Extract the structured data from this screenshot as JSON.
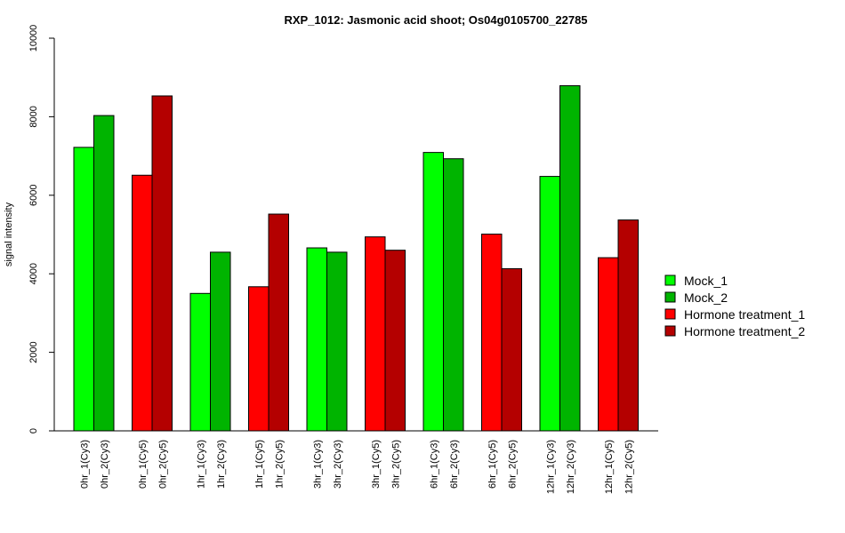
{
  "chart_data": {
    "type": "bar",
    "title": "RXP_1012: Jasmonic acid shoot; Os04g0105700_22785",
    "xlabel": "",
    "ylabel": "signal intensity",
    "ylim": [
      0,
      10000
    ],
    "yticks": [
      0,
      2000,
      4000,
      6000,
      8000,
      10000
    ],
    "grid": false,
    "legend_position": "right",
    "series": [
      {
        "name": "Mock_1",
        "color": "#00FF00"
      },
      {
        "name": "Mock_2",
        "color": "#00B400"
      },
      {
        "name": "Hormone treatment_1",
        "color": "#FF0000"
      },
      {
        "name": "Hormone treatment_2",
        "color": "#B40000"
      }
    ],
    "groups": [
      {
        "bars": [
          {
            "label": "0hr_1(Cy3)",
            "value": 7220,
            "series": 0
          },
          {
            "label": "0hr_2(Cy3)",
            "value": 8030,
            "series": 1
          }
        ]
      },
      {
        "bars": [
          {
            "label": "0hr_1(Cy5)",
            "value": 6510,
            "series": 2
          },
          {
            "label": "0hr_2(Cy5)",
            "value": 8530,
            "series": 3
          }
        ]
      },
      {
        "bars": [
          {
            "label": "1hr_1(Cy3)",
            "value": 3500,
            "series": 0
          },
          {
            "label": "1hr_2(Cy3)",
            "value": 4550,
            "series": 1
          }
        ]
      },
      {
        "bars": [
          {
            "label": "1hr_1(Cy5)",
            "value": 3670,
            "series": 2
          },
          {
            "label": "1hr_2(Cy5)",
            "value": 5520,
            "series": 3
          }
        ]
      },
      {
        "bars": [
          {
            "label": "3hr_1(Cy3)",
            "value": 4660,
            "series": 0
          },
          {
            "label": "3hr_2(Cy3)",
            "value": 4550,
            "series": 1
          }
        ]
      },
      {
        "bars": [
          {
            "label": "3hr_1(Cy5)",
            "value": 4940,
            "series": 2
          },
          {
            "label": "3hr_2(Cy5)",
            "value": 4600,
            "series": 3
          }
        ]
      },
      {
        "bars": [
          {
            "label": "6hr_1(Cy3)",
            "value": 7090,
            "series": 0
          },
          {
            "label": "6hr_2(Cy3)",
            "value": 6930,
            "series": 1
          }
        ]
      },
      {
        "bars": [
          {
            "label": "6hr_1(Cy5)",
            "value": 5010,
            "series": 2
          },
          {
            "label": "6hr_2(Cy5)",
            "value": 4130,
            "series": 3
          }
        ]
      },
      {
        "bars": [
          {
            "label": "12hr_1(Cy3)",
            "value": 6480,
            "series": 0
          },
          {
            "label": "12hr_2(Cy3)",
            "value": 8790,
            "series": 1
          }
        ]
      },
      {
        "bars": [
          {
            "label": "12hr_1(Cy5)",
            "value": 4410,
            "series": 2
          },
          {
            "label": "12hr_2(Cy5)",
            "value": 5370,
            "series": 3
          }
        ]
      }
    ]
  }
}
